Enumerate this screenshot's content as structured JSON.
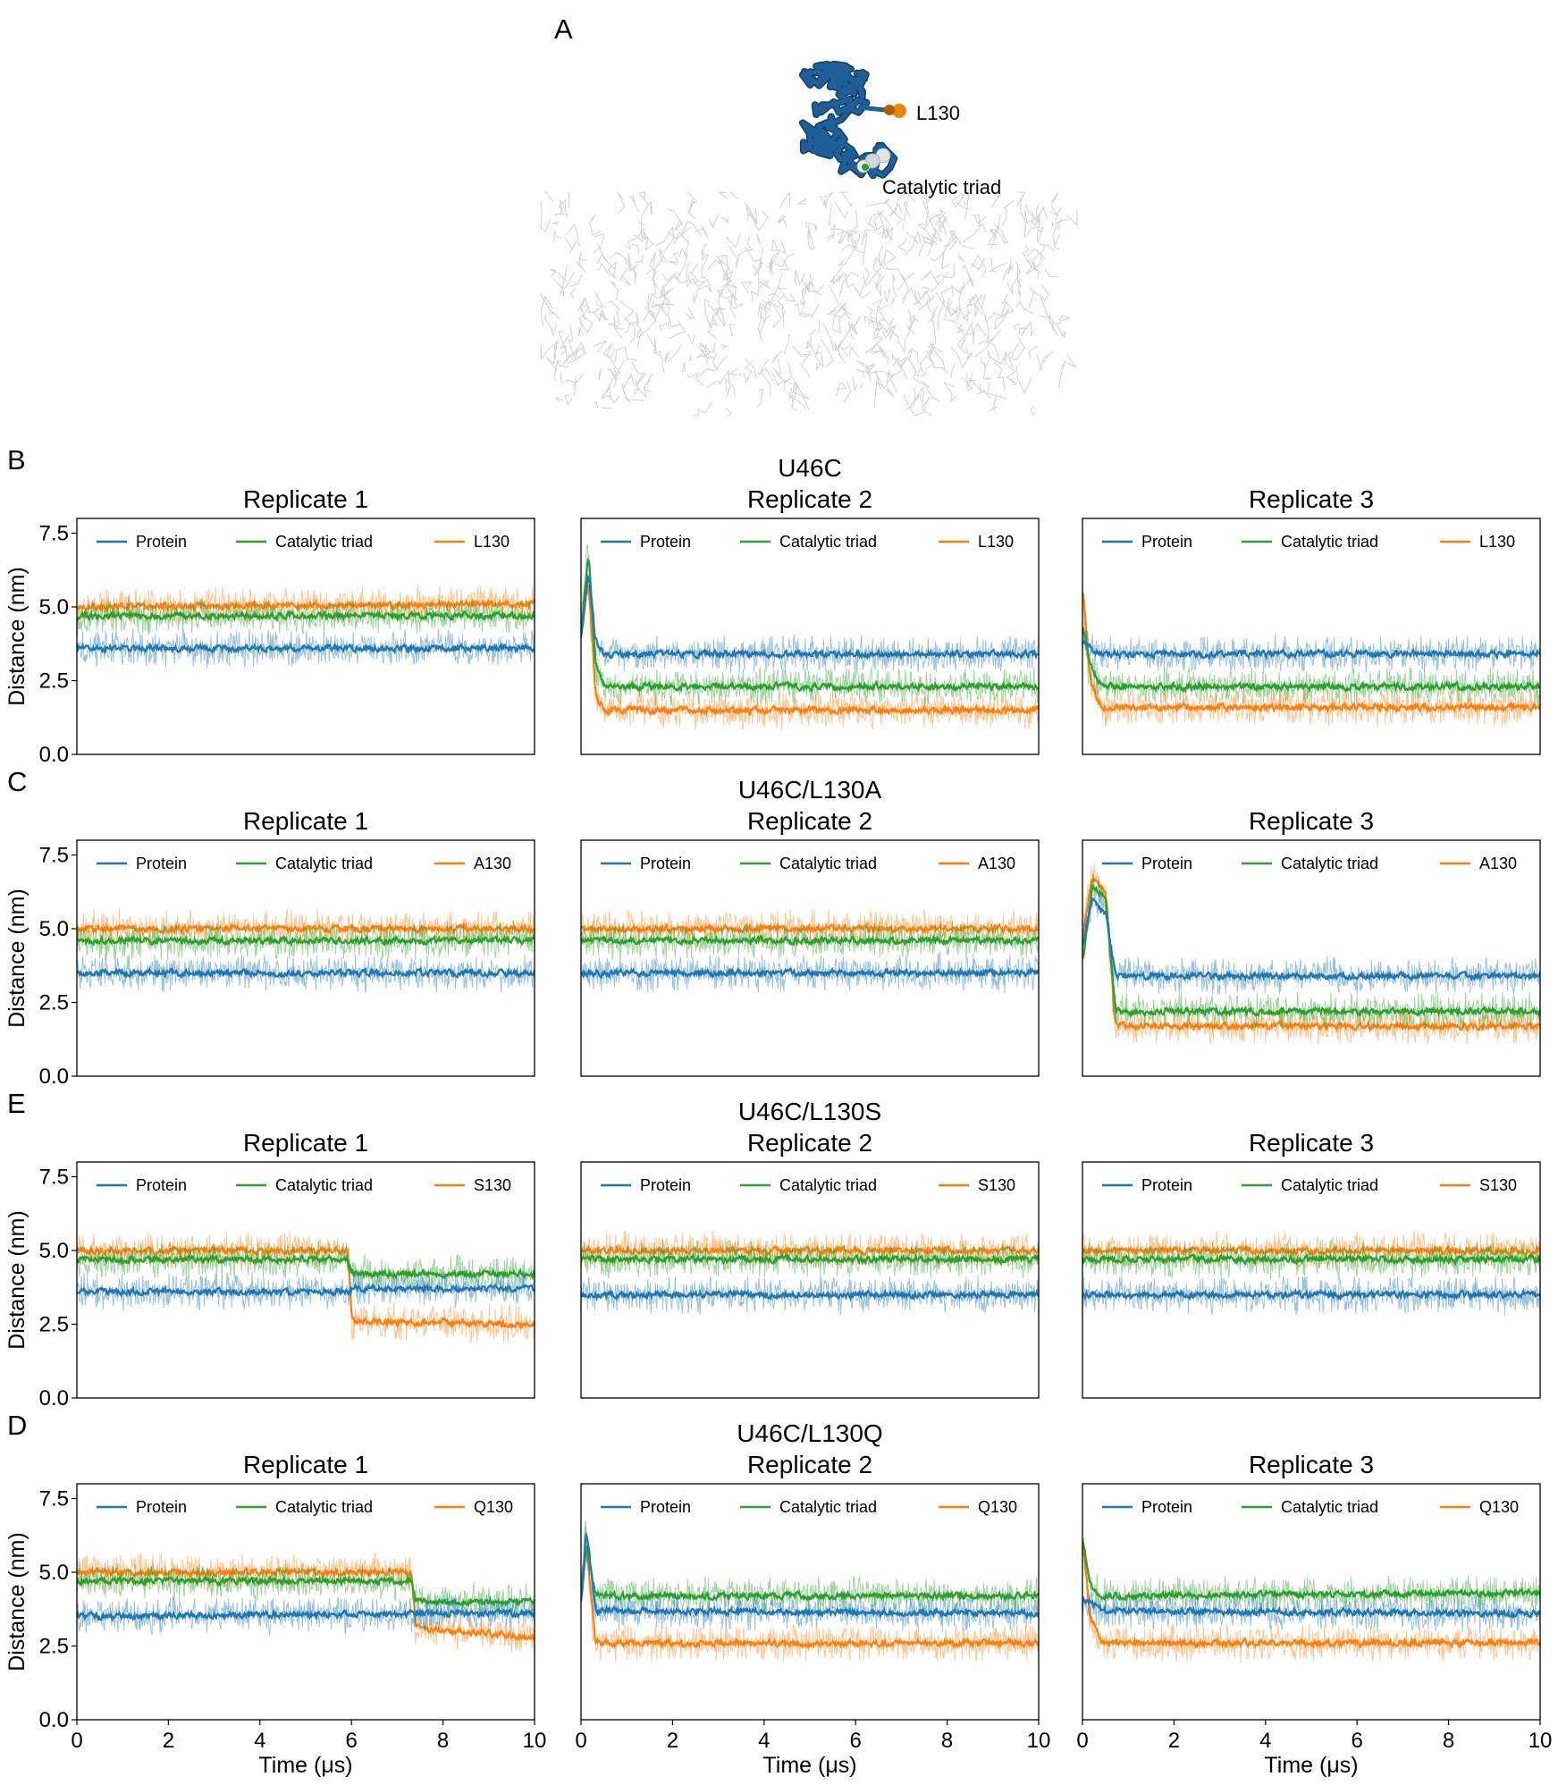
{
  "structure_panel": {
    "letter": "A",
    "labels": {
      "residue": "L130",
      "triad": "Catalytic triad"
    },
    "colors": {
      "protein": "#1f5e96",
      "residue_bead": "#e8860a",
      "triad_bead": "#d9d9d9",
      "membrane": "#c8c8c8"
    }
  },
  "colors": {
    "Protein": "#1f77b4",
    "Catalytic triad": "#2ca02c",
    "residue": "#ff7f0e"
  },
  "chart_data": [
    {
      "row": "B",
      "system": "U46C",
      "type": "line",
      "xlabel": "",
      "ylabel": "Distance (nm)",
      "xlim": [
        0,
        10
      ],
      "ylim": [
        0,
        8
      ],
      "yticks": [
        "0.0",
        "2.5",
        "5.0",
        "7.5"
      ],
      "xticks": [
        "0",
        "2",
        "4",
        "6",
        "8",
        "10"
      ],
      "replicates": [
        {
          "title": "Replicate 1",
          "legend": [
            "Protein",
            "Catalytic triad",
            "L130"
          ],
          "series": [
            {
              "name": "Protein",
              "x": [
                0,
                0.1,
                10
              ],
              "y": [
                3.6,
                3.6,
                3.6
              ]
            },
            {
              "name": "Catalytic triad",
              "x": [
                0,
                0.1,
                10
              ],
              "y": [
                4.6,
                4.7,
                4.7
              ]
            },
            {
              "name": "L130",
              "x": [
                0,
                0.1,
                10
              ],
              "y": [
                5.0,
                5.0,
                5.1
              ]
            }
          ]
        },
        {
          "title": "Replicate 2",
          "legend": [
            "Protein",
            "Catalytic triad",
            "L130"
          ],
          "series": [
            {
              "name": "Protein",
              "x": [
                0,
                0.15,
                0.3,
                0.5,
                10
              ],
              "y": [
                4.0,
                6.2,
                3.8,
                3.4,
                3.4
              ]
            },
            {
              "name": "Catalytic triad",
              "x": [
                0,
                0.15,
                0.3,
                0.5,
                10
              ],
              "y": [
                4.3,
                7.0,
                3.0,
                2.3,
                2.3
              ]
            },
            {
              "name": "L130",
              "x": [
                0,
                0.15,
                0.3,
                0.5,
                10
              ],
              "y": [
                4.5,
                6.0,
                2.0,
                1.5,
                1.5
              ]
            }
          ]
        },
        {
          "title": "Replicate 3",
          "legend": [
            "Protein",
            "Catalytic triad",
            "L130"
          ],
          "series": [
            {
              "name": "Protein",
              "x": [
                0,
                0.15,
                0.4,
                10
              ],
              "y": [
                3.8,
                3.6,
                3.4,
                3.4
              ]
            },
            {
              "name": "Catalytic triad",
              "x": [
                0,
                0.15,
                0.4,
                10
              ],
              "y": [
                4.3,
                3.0,
                2.3,
                2.3
              ]
            },
            {
              "name": "L130",
              "x": [
                0,
                0.15,
                0.4,
                10
              ],
              "y": [
                5.5,
                2.5,
                1.6,
                1.6
              ]
            }
          ]
        }
      ]
    },
    {
      "row": "C",
      "system": "U46C/L130A",
      "type": "line",
      "xlabel": "",
      "ylabel": "Distance (nm)",
      "xlim": [
        0,
        10
      ],
      "ylim": [
        0,
        8
      ],
      "yticks": [
        "0.0",
        "2.5",
        "5.0",
        "7.5"
      ],
      "xticks": [
        "0",
        "2",
        "4",
        "6",
        "8",
        "10"
      ],
      "replicates": [
        {
          "title": "Replicate 1",
          "legend": [
            "Protein",
            "Catalytic triad",
            "A130"
          ],
          "series": [
            {
              "name": "Protein",
              "x": [
                0,
                10
              ],
              "y": [
                3.5,
                3.5
              ]
            },
            {
              "name": "Catalytic triad",
              "x": [
                0,
                10
              ],
              "y": [
                4.6,
                4.6
              ]
            },
            {
              "name": "A130",
              "x": [
                0,
                10
              ],
              "y": [
                5.0,
                5.0
              ]
            }
          ]
        },
        {
          "title": "Replicate 2",
          "legend": [
            "Protein",
            "Catalytic triad",
            "A130"
          ],
          "series": [
            {
              "name": "Protein",
              "x": [
                0,
                10
              ],
              "y": [
                3.5,
                3.5
              ]
            },
            {
              "name": "Catalytic triad",
              "x": [
                0,
                10
              ],
              "y": [
                4.6,
                4.6
              ]
            },
            {
              "name": "A130",
              "x": [
                0,
                10
              ],
              "y": [
                5.0,
                5.0
              ]
            }
          ]
        },
        {
          "title": "Replicate 3",
          "legend": [
            "Protein",
            "Catalytic triad",
            "A130"
          ],
          "series": [
            {
              "name": "Protein",
              "x": [
                0,
                0.2,
                0.5,
                0.7,
                10
              ],
              "y": [
                4.5,
                6.0,
                5.5,
                3.4,
                3.4
              ]
            },
            {
              "name": "Catalytic triad",
              "x": [
                0,
                0.2,
                0.5,
                0.7,
                10
              ],
              "y": [
                4.0,
                6.5,
                6.0,
                2.2,
                2.2
              ]
            },
            {
              "name": "A130",
              "x": [
                0,
                0.2,
                0.5,
                0.7,
                10
              ],
              "y": [
                4.8,
                6.8,
                6.2,
                1.7,
                1.7
              ]
            }
          ]
        }
      ]
    },
    {
      "row": "E",
      "system": "U46C/L130S",
      "type": "line",
      "xlabel": "",
      "ylabel": "Distance (nm)",
      "xlim": [
        0,
        10
      ],
      "ylim": [
        0,
        8
      ],
      "yticks": [
        "0.0",
        "2.5",
        "5.0",
        "7.5"
      ],
      "xticks": [
        "0",
        "2",
        "4",
        "6",
        "8",
        "10"
      ],
      "replicates": [
        {
          "title": "Replicate 1",
          "legend": [
            "Protein",
            "Catalytic triad",
            "S130"
          ],
          "series": [
            {
              "name": "Protein",
              "x": [
                0,
                5.9,
                6.0,
                10
              ],
              "y": [
                3.6,
                3.6,
                3.7,
                3.7
              ]
            },
            {
              "name": "Catalytic triad",
              "x": [
                0,
                5.9,
                6.0,
                10
              ],
              "y": [
                4.7,
                4.7,
                4.2,
                4.2
              ]
            },
            {
              "name": "S130",
              "x": [
                0,
                5.9,
                6.0,
                10
              ],
              "y": [
                5.0,
                5.0,
                2.6,
                2.5
              ]
            }
          ]
        },
        {
          "title": "Replicate 2",
          "legend": [
            "Protein",
            "Catalytic triad",
            "S130"
          ],
          "series": [
            {
              "name": "Protein",
              "x": [
                0,
                10
              ],
              "y": [
                3.5,
                3.5
              ]
            },
            {
              "name": "Catalytic triad",
              "x": [
                0,
                10
              ],
              "y": [
                4.7,
                4.7
              ]
            },
            {
              "name": "S130",
              "x": [
                0,
                10
              ],
              "y": [
                5.0,
                5.0
              ]
            }
          ]
        },
        {
          "title": "Replicate 3",
          "legend": [
            "Protein",
            "Catalytic triad",
            "S130"
          ],
          "series": [
            {
              "name": "Protein",
              "x": [
                0,
                10
              ],
              "y": [
                3.5,
                3.5
              ]
            },
            {
              "name": "Catalytic triad",
              "x": [
                0,
                10
              ],
              "y": [
                4.7,
                4.7
              ]
            },
            {
              "name": "S130",
              "x": [
                0,
                10
              ],
              "y": [
                5.0,
                5.0
              ]
            }
          ]
        }
      ]
    },
    {
      "row": "D",
      "system": "U46C/L130Q",
      "type": "line",
      "xlabel": "Time (μs)",
      "ylabel": "Distance (nm)",
      "xlim": [
        0,
        10
      ],
      "ylim": [
        0,
        8
      ],
      "yticks": [
        "0.0",
        "2.5",
        "5.0",
        "7.5"
      ],
      "xticks": [
        "0",
        "2",
        "4",
        "6",
        "8",
        "10"
      ],
      "replicates": [
        {
          "title": "Replicate 1",
          "legend": [
            "Protein",
            "Catalytic triad",
            "Q130"
          ],
          "series": [
            {
              "name": "Protein",
              "x": [
                0,
                7.3,
                7.4,
                10
              ],
              "y": [
                3.5,
                3.6,
                3.6,
                3.6
              ]
            },
            {
              "name": "Catalytic triad",
              "x": [
                0,
                7.3,
                7.4,
                10
              ],
              "y": [
                4.7,
                4.7,
                4.0,
                4.0
              ]
            },
            {
              "name": "Q130",
              "x": [
                0,
                7.3,
                7.4,
                10
              ],
              "y": [
                5.0,
                5.0,
                3.1,
                2.8
              ]
            }
          ]
        },
        {
          "title": "Replicate 2",
          "legend": [
            "Protein",
            "Catalytic triad",
            "Q130"
          ],
          "series": [
            {
              "name": "Protein",
              "x": [
                0,
                0.1,
                0.3,
                10
              ],
              "y": [
                4.0,
                6.5,
                3.7,
                3.6
              ]
            },
            {
              "name": "Catalytic triad",
              "x": [
                0,
                0.1,
                0.3,
                10
              ],
              "y": [
                4.2,
                6.0,
                4.2,
                4.2
              ]
            },
            {
              "name": "Q130",
              "x": [
                0,
                0.1,
                0.3,
                10
              ],
              "y": [
                4.5,
                6.0,
                2.6,
                2.6
              ]
            }
          ]
        },
        {
          "title": "Replicate 3",
          "legend": [
            "Protein",
            "Catalytic triad",
            "Q130"
          ],
          "series": [
            {
              "name": "Protein",
              "x": [
                0,
                0.15,
                0.4,
                10
              ],
              "y": [
                4.0,
                4.0,
                3.7,
                3.6
              ]
            },
            {
              "name": "Catalytic triad",
              "x": [
                0,
                0.15,
                0.4,
                10
              ],
              "y": [
                6.0,
                4.5,
                4.2,
                4.3
              ]
            },
            {
              "name": "Q130",
              "x": [
                0,
                0.15,
                0.4,
                10
              ],
              "y": [
                6.0,
                3.5,
                2.6,
                2.6
              ]
            }
          ]
        }
      ]
    }
  ]
}
